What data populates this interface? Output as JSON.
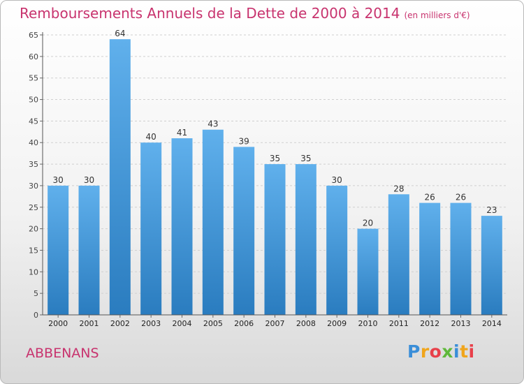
{
  "header": {
    "title": "Remboursements Annuels de la Dette de 2000 à 2014",
    "subtitle": "(en milliers d'€)"
  },
  "commune": "ABBENANS",
  "brand": {
    "letters": [
      "P",
      "r",
      "o",
      "x",
      "i",
      "t",
      "i"
    ],
    "letter_colors": [
      "#3a8ed8",
      "#f0a51c",
      "#e8404a",
      "#5fb83a",
      "#3a8ed8",
      "#f0a51c",
      "#e8404a"
    ]
  },
  "colors": {
    "title": "#c8336e",
    "bar_top": "#60b0ec",
    "bar_bottom": "#2a7cbf"
  },
  "chart_data": {
    "type": "bar",
    "title": "Remboursements Annuels de la Dette de 2000 à 2014",
    "subtitle": "(en milliers d'€)",
    "xlabel": "",
    "ylabel": "",
    "categories": [
      "2000",
      "2001",
      "2002",
      "2003",
      "2004",
      "2005",
      "2006",
      "2007",
      "2008",
      "2009",
      "2010",
      "2011",
      "2012",
      "2013",
      "2014"
    ],
    "values": [
      30,
      30,
      64,
      40,
      41,
      43,
      39,
      35,
      35,
      30,
      20,
      28,
      26,
      26,
      23
    ],
    "ylim": [
      0,
      65
    ],
    "yticks": [
      0,
      5,
      10,
      15,
      20,
      25,
      30,
      35,
      40,
      45,
      50,
      55,
      60,
      65
    ],
    "grid": true,
    "data_labels": true
  }
}
